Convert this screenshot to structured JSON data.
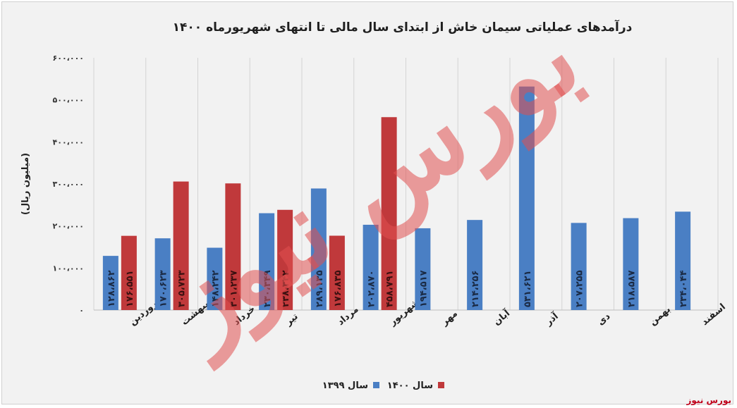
{
  "chart_data": {
    "type": "bar",
    "title": "درآمدهای عملیاتی سیمان خاش از ابتدای سال مالی تا انتهای شهریورماه ۱۴۰۰",
    "ylabel": "(میلیون ریال)",
    "xlabel": "",
    "ylim": [
      0,
      600000
    ],
    "y_ticks": [
      0,
      100000,
      200000,
      300000,
      400000,
      500000,
      600000
    ],
    "y_tick_labels": [
      "۰",
      "۱۰۰،۰۰۰",
      "۲۰۰،۰۰۰",
      "۳۰۰،۰۰۰",
      "۴۰۰،۰۰۰",
      "۵۰۰،۰۰۰",
      "۶۰۰،۰۰۰"
    ],
    "grid": "vertical",
    "legend_position": "bottom",
    "categories": [
      "فروردین",
      "اردیبهشت",
      "خرداد",
      "تیر",
      "مرداد",
      "شهریور",
      "مهر",
      "آبان",
      "آذر",
      "دی",
      "بهمن",
      "اسفند"
    ],
    "series": [
      {
        "name": "سال ۱۳۹۹",
        "color": "#4a7fc4",
        "values": [
          128862,
          170623,
          148242,
          230349,
          289135,
          202870,
          194517,
          214256,
          531621,
          207255,
          218587,
          234044
        ],
        "labels": [
          "۱۲۸،۸۶۲",
          "۱۷۰،۶۲۳",
          "۱۴۸،۲۴۲",
          "۲۳۰،۳۴۹",
          "۲۸۹،۱۳۵",
          "۲۰۲،۸۷۰",
          "۱۹۴،۵۱۷",
          "۲۱۴،۲۵۶",
          "۵۳۱،۶۲۱",
          "۲۰۷،۲۵۵",
          "۲۱۸،۵۸۷",
          "۲۳۴،۰۴۴"
        ]
      },
      {
        "name": "سال ۱۴۰۰",
        "color": "#c0393b",
        "values": [
          176551,
          305723,
          301237,
          238342,
          176835,
          458791,
          null,
          null,
          null,
          null,
          null,
          null
        ],
        "labels": [
          "۱۷۶،۵۵۱",
          "۳۰۵،۷۲۳",
          "۳۰۱،۲۳۷",
          "۲۳۸،۳۴۲",
          "۱۷۶،۸۳۵",
          "۴۵۸،۷۹۱",
          "",
          "",
          "",
          "",
          "",
          ""
        ]
      }
    ]
  },
  "watermark": {
    "text": "بورس نیوز",
    "color": "#e05050"
  },
  "footer_source": "بورس نیوز"
}
